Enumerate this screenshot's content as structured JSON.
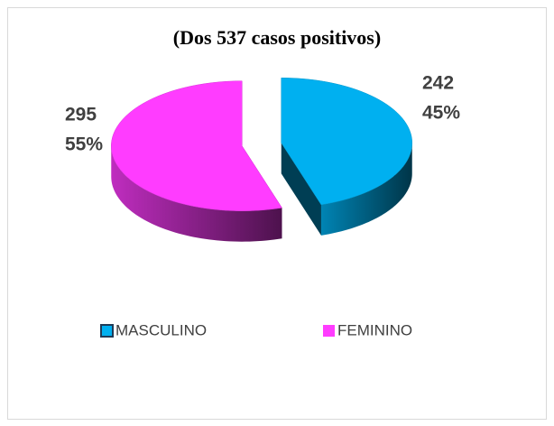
{
  "chart_data": {
    "type": "pie",
    "title": "(Dos 537 casos positivos)",
    "categories": [
      "MASCULINO",
      "FEMININO"
    ],
    "values": [
      242,
      295
    ],
    "percent_labels": [
      "45%",
      "55%"
    ],
    "colors": [
      "#00b0f0",
      "#ff3cff"
    ],
    "legend": "bottom"
  }
}
